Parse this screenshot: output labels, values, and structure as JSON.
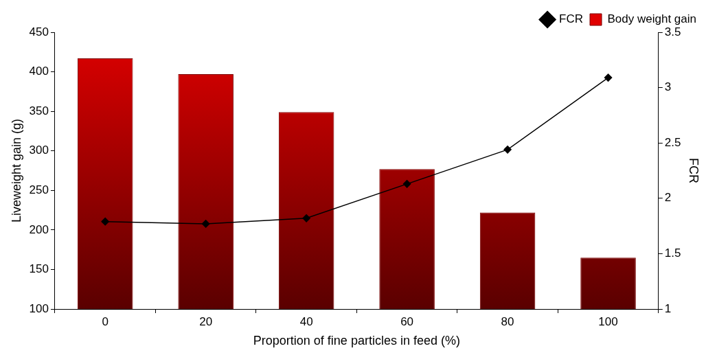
{
  "chart_data": {
    "type": "bar",
    "categories": [
      "0",
      "20",
      "40",
      "60",
      "80",
      "100"
    ],
    "x_label": "Proportion of fine particles in feed (%)",
    "y_label": "Liveweight gain (g)",
    "y2_label": "FCR",
    "series": [
      {
        "name": "Body weight gain",
        "type": "bar",
        "color": "#e00000",
        "values": [
          417,
          397,
          349,
          277,
          222,
          165
        ]
      },
      {
        "name": "FCR",
        "type": "line",
        "axis": "y2",
        "color": "#000000",
        "marker": "diamond",
        "line_style": "solid",
        "values": [
          1.79,
          1.77,
          1.82,
          2.13,
          2.44,
          3.09
        ]
      }
    ],
    "ylim": [
      100,
      450
    ],
    "yticks": [
      100,
      150,
      200,
      250,
      300,
      350,
      400,
      450
    ],
    "y2lim": [
      1,
      3.5
    ],
    "y2ticks": [
      1,
      1.5,
      2,
      2.5,
      3,
      3.5
    ],
    "grid": false,
    "legend": "upper right"
  }
}
